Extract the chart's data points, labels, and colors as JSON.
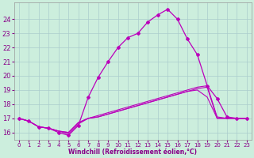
{
  "xlabel": "Windchill (Refroidissement éolien,°C)",
  "background_color": "#cceedd",
  "grid_color": "#aacccc",
  "line_color": "#bb00bb",
  "xlim": [
    -0.5,
    23.5
  ],
  "ylim": [
    15.5,
    25.2
  ],
  "xticks": [
    0,
    1,
    2,
    3,
    4,
    5,
    6,
    7,
    8,
    9,
    10,
    11,
    12,
    13,
    14,
    15,
    16,
    17,
    18,
    19,
    20,
    21,
    22,
    23
  ],
  "yticks": [
    16,
    17,
    18,
    19,
    20,
    21,
    22,
    23,
    24
  ],
  "main_series": [
    17.0,
    16.8,
    16.4,
    16.3,
    16.0,
    15.8,
    16.5,
    18.5,
    19.9,
    21.0,
    22.0,
    22.7,
    23.0,
    23.8,
    24.3,
    24.7,
    24.0,
    22.6,
    21.5,
    19.3,
    18.4,
    17.1,
    17.0,
    17.0
  ],
  "flat_series": [
    [
      17.0,
      16.8,
      16.4,
      16.3,
      16.1,
      16.0,
      16.7,
      17.0,
      17.1,
      17.3,
      17.5,
      17.7,
      17.9,
      18.1,
      18.3,
      18.5,
      18.7,
      18.9,
      19.1,
      19.2,
      17.0,
      17.0,
      17.0,
      17.0
    ],
    [
      17.0,
      16.8,
      16.4,
      16.3,
      16.1,
      16.0,
      16.7,
      17.0,
      17.1,
      17.3,
      17.5,
      17.7,
      17.9,
      18.1,
      18.3,
      18.5,
      18.7,
      18.9,
      19.0,
      18.5,
      17.0,
      17.0,
      17.0,
      17.0
    ],
    [
      17.0,
      16.8,
      16.4,
      16.3,
      16.1,
      15.9,
      16.6,
      17.0,
      17.2,
      17.4,
      17.6,
      17.8,
      18.0,
      18.2,
      18.4,
      18.6,
      18.8,
      19.0,
      19.2,
      19.3,
      17.1,
      17.0,
      17.0,
      17.0
    ]
  ]
}
